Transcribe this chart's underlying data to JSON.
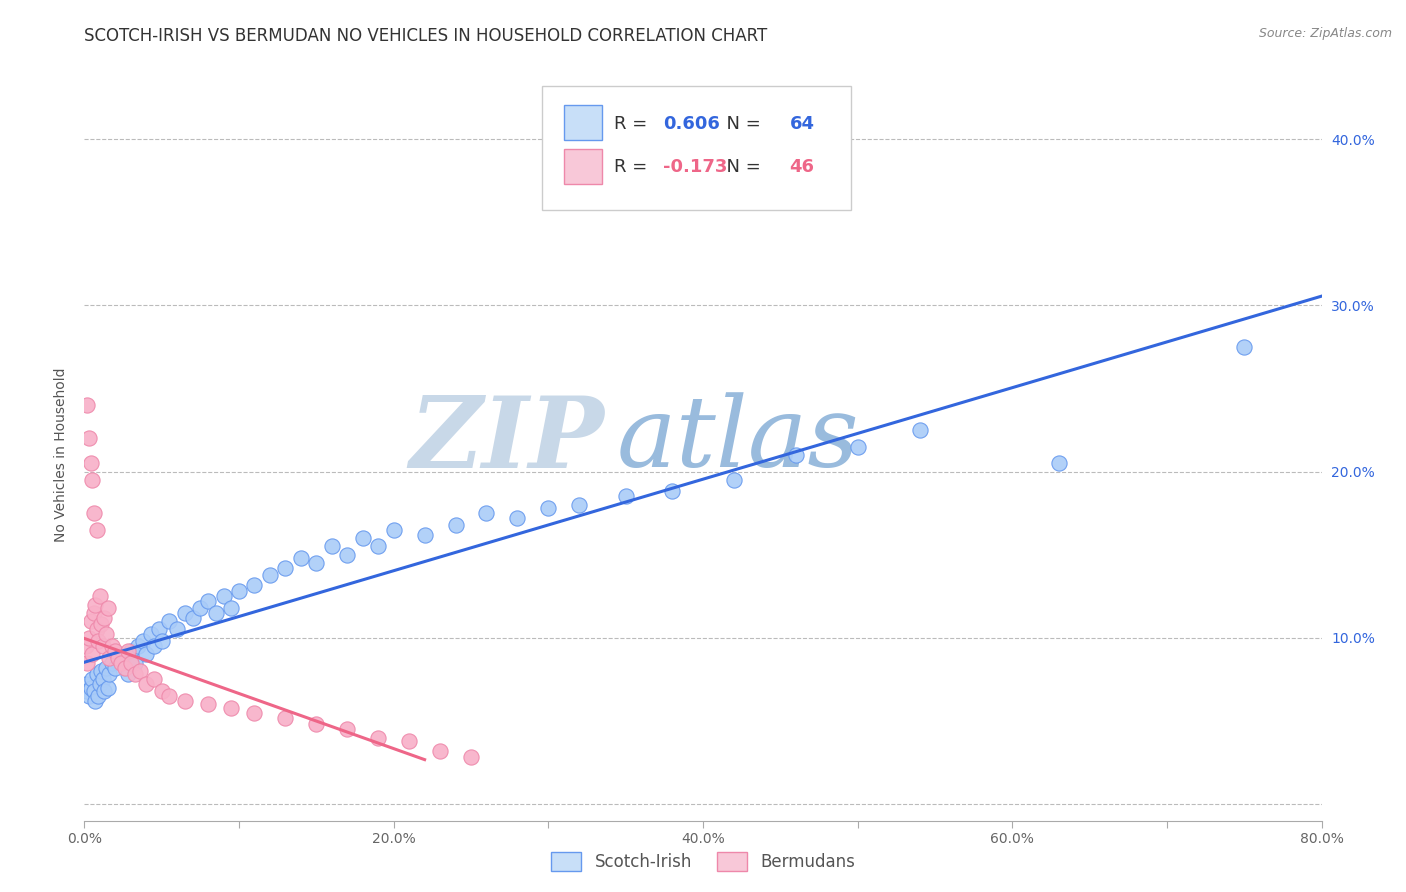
{
  "title": "SCOTCH-IRISH VS BERMUDAN NO VEHICLES IN HOUSEHOLD CORRELATION CHART",
  "source": "Source: ZipAtlas.com",
  "ylabel": "No Vehicles in Household",
  "xlim": [
    0.0,
    0.8
  ],
  "ylim": [
    -0.01,
    0.43
  ],
  "xticks": [
    0.0,
    0.1,
    0.2,
    0.3,
    0.4,
    0.5,
    0.6,
    0.7,
    0.8
  ],
  "yticks": [
    0.0,
    0.1,
    0.2,
    0.3,
    0.4
  ],
  "xticklabels": [
    "0.0%",
    "",
    "20.0%",
    "",
    "40.0%",
    "",
    "60.0%",
    "",
    "80.0%"
  ],
  "yticklabels_right": [
    "",
    "10.0%",
    "20.0%",
    "30.0%",
    "40.0%"
  ],
  "scotch_irish_R": 0.606,
  "scotch_irish_N": 64,
  "bermudan_R": -0.173,
  "bermudan_N": 46,
  "scotch_irish_color": "#aaccf8",
  "bermudan_color": "#f8b0c8",
  "scotch_irish_edge_color": "#6699ee",
  "bermudan_edge_color": "#ee88aa",
  "scotch_irish_line_color": "#3366dd",
  "bermudan_line_color": "#ee6688",
  "legend_box_color_si": "#c8dff8",
  "legend_box_color_bm": "#f8c8d8",
  "grid_color": "#bbbbbb",
  "background_color": "#ffffff",
  "watermark_zip": "ZIP",
  "watermark_atlas": "atlas",
  "watermark_color_zip": "#c8d8e8",
  "watermark_color_atlas": "#99bbdd",
  "title_fontsize": 12,
  "axis_label_fontsize": 10,
  "tick_fontsize": 10,
  "legend_fontsize": 13,
  "scotch_irish_x": [
    0.001,
    0.002,
    0.003,
    0.004,
    0.005,
    0.006,
    0.007,
    0.008,
    0.009,
    0.01,
    0.011,
    0.012,
    0.013,
    0.014,
    0.015,
    0.016,
    0.018,
    0.02,
    0.022,
    0.025,
    0.028,
    0.03,
    0.033,
    0.035,
    0.038,
    0.04,
    0.043,
    0.045,
    0.048,
    0.05,
    0.055,
    0.06,
    0.065,
    0.07,
    0.075,
    0.08,
    0.085,
    0.09,
    0.095,
    0.1,
    0.11,
    0.12,
    0.13,
    0.14,
    0.15,
    0.16,
    0.17,
    0.18,
    0.19,
    0.2,
    0.22,
    0.24,
    0.26,
    0.28,
    0.3,
    0.32,
    0.35,
    0.38,
    0.42,
    0.46,
    0.5,
    0.54,
    0.63,
    0.75
  ],
  "scotch_irish_y": [
    0.072,
    0.068,
    0.065,
    0.07,
    0.075,
    0.068,
    0.062,
    0.078,
    0.065,
    0.072,
    0.08,
    0.075,
    0.068,
    0.082,
    0.07,
    0.078,
    0.085,
    0.082,
    0.09,
    0.088,
    0.078,
    0.092,
    0.085,
    0.095,
    0.098,
    0.09,
    0.102,
    0.095,
    0.105,
    0.098,
    0.11,
    0.105,
    0.115,
    0.112,
    0.118,
    0.122,
    0.115,
    0.125,
    0.118,
    0.128,
    0.132,
    0.138,
    0.142,
    0.148,
    0.145,
    0.155,
    0.15,
    0.16,
    0.155,
    0.165,
    0.162,
    0.168,
    0.175,
    0.172,
    0.178,
    0.18,
    0.185,
    0.188,
    0.195,
    0.21,
    0.215,
    0.225,
    0.205,
    0.275
  ],
  "bermudan_x": [
    0.001,
    0.002,
    0.003,
    0.004,
    0.005,
    0.006,
    0.007,
    0.008,
    0.009,
    0.01,
    0.011,
    0.012,
    0.013,
    0.014,
    0.015,
    0.016,
    0.018,
    0.02,
    0.022,
    0.024,
    0.026,
    0.028,
    0.03,
    0.033,
    0.036,
    0.04,
    0.045,
    0.05,
    0.055,
    0.065,
    0.08,
    0.095,
    0.11,
    0.13,
    0.15,
    0.17,
    0.19,
    0.21,
    0.23,
    0.25,
    0.002,
    0.003,
    0.004,
    0.005,
    0.006,
    0.008
  ],
  "bermudan_y": [
    0.095,
    0.085,
    0.1,
    0.11,
    0.09,
    0.115,
    0.12,
    0.105,
    0.098,
    0.125,
    0.108,
    0.095,
    0.112,
    0.102,
    0.118,
    0.088,
    0.095,
    0.092,
    0.088,
    0.085,
    0.082,
    0.092,
    0.085,
    0.078,
    0.08,
    0.072,
    0.075,
    0.068,
    0.065,
    0.062,
    0.06,
    0.058,
    0.055,
    0.052,
    0.048,
    0.045,
    0.04,
    0.038,
    0.032,
    0.028,
    0.24,
    0.22,
    0.205,
    0.195,
    0.175,
    0.165
  ],
  "bermudan_line_xstart": 0.0,
  "bermudan_line_xend": 0.22,
  "scotch_irish_line_xstart": 0.0,
  "scotch_irish_line_xend": 0.8
}
